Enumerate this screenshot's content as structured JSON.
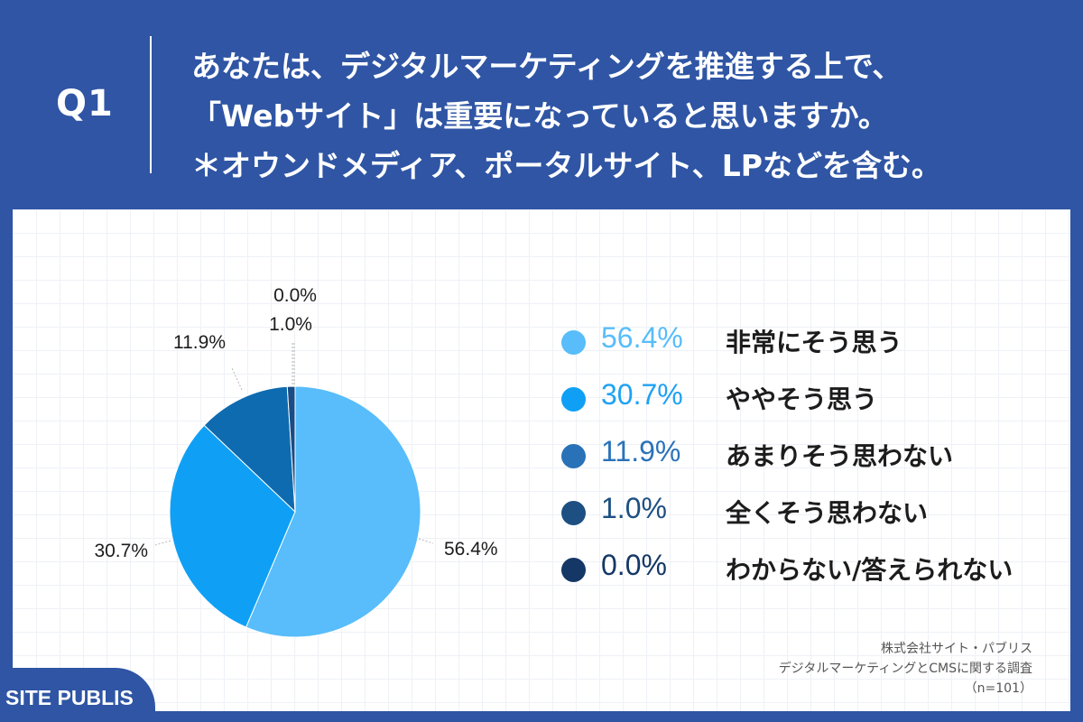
{
  "header": {
    "q_label": "Q1",
    "question_lines": [
      "あなたは、デジタルマーケティングを推進する上で、",
      "「Webサイト」は重要になっていると思いますか。",
      "＊オウンドメディア、ポータルサイト、LPなどを含む。"
    ]
  },
  "chart_data": {
    "type": "pie",
    "slices": [
      {
        "label": "非常にそう思う",
        "value": 56.4,
        "display": "56.4%",
        "color": "#58bdfa"
      },
      {
        "label": "ややそう思う",
        "value": 30.7,
        "display": "30.7%",
        "color": "#0fa0f6"
      },
      {
        "label": "あまりそう思わない",
        "value": 11.9,
        "display": "11.9%",
        "color": "#0e6bb0"
      },
      {
        "label": "全くそう思わない",
        "value": 1.0,
        "display": "1.0%",
        "color": "#1a4d86"
      },
      {
        "label": "わからない/答えられない",
        "value": 0.0,
        "display": "0.0%",
        "color": "#123466"
      }
    ],
    "legend_position": "right"
  },
  "legend": [
    {
      "pct": "56.4%",
      "label": "非常にそう思う",
      "color": "#58bdfa",
      "pct_color": "#58bdfa"
    },
    {
      "pct": "30.7%",
      "label": "ややそう思う",
      "color": "#0fa0f6",
      "pct_color": "#1fa2f3"
    },
    {
      "pct": "11.9%",
      "label": "あまりそう思わない",
      "color": "#2a72b8",
      "pct_color": "#2a72b8"
    },
    {
      "pct": "1.0%",
      "label": "全くそう思わない",
      "color": "#1d4f82",
      "pct_color": "#1d4f82"
    },
    {
      "pct": "0.0%",
      "label": "わからない/答えられない",
      "color": "#143766",
      "pct_color": "#143766"
    }
  ],
  "source": {
    "line1": "株式会社サイト・パブリス",
    "line2": "デジタルマーケティングとCMSに関する調査",
    "line3": "（n=101）"
  },
  "logo": {
    "text": "SITE PUBLIS"
  }
}
